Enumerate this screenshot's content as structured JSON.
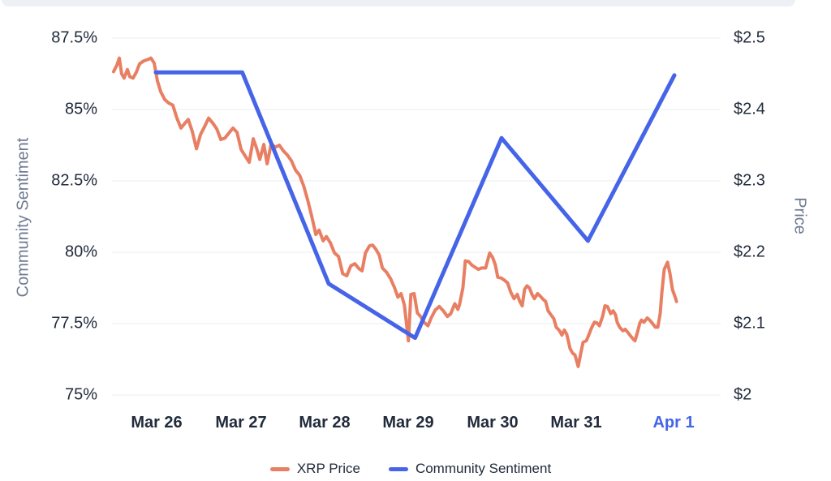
{
  "colors": {
    "price_line": "#E87F63",
    "sentiment_line": "#4564E8",
    "grid": "#E9ECEF",
    "text_dark": "#212B3B",
    "text_muted": "#6E7B90",
    "accent_label": "#4564E8",
    "top_strip": "#EDF0F4"
  },
  "chart_data": {
    "type": "line",
    "title": "",
    "x_unit": "days (0 = Mar 26)",
    "x_axis": {
      "tick_labels": [
        "Mar 26",
        "Mar 27",
        "Mar 28",
        "Mar 29",
        "Mar 30",
        "Mar 31",
        "Apr 1"
      ],
      "highlight_last": true
    },
    "left_axis": {
      "label": "Community Sentiment",
      "unit": "%",
      "min": 75,
      "max": 87.5,
      "tick_labels": [
        "87.5%",
        "85%",
        "82.5%",
        "80%",
        "77.5%",
        "75%"
      ]
    },
    "right_axis": {
      "label": "Price",
      "unit": "$",
      "min": 2.0,
      "max": 2.5,
      "tick_labels": [
        "$2.5",
        "$2.4",
        "$2.3",
        "$2.2",
        "$2.1",
        "$2"
      ]
    },
    "grid": true,
    "legend_position": "bottom",
    "series": [
      {
        "name": "XRP Price",
        "axis": "right",
        "color": "#E87F63",
        "points": [
          [
            -0.489,
            2.453
          ],
          [
            -0.451,
            2.462
          ],
          [
            -0.423,
            2.472
          ],
          [
            -0.395,
            2.45
          ],
          [
            -0.367,
            2.444
          ],
          [
            -0.329,
            2.456
          ],
          [
            -0.301,
            2.446
          ],
          [
            -0.263,
            2.444
          ],
          [
            -0.226,
            2.452
          ],
          [
            -0.188,
            2.464
          ],
          [
            -0.141,
            2.468
          ],
          [
            -0.094,
            2.47
          ],
          [
            -0.056,
            2.472
          ],
          [
            -0.019,
            2.465
          ],
          [
            0.019,
            2.44
          ],
          [
            0.056,
            2.425
          ],
          [
            0.103,
            2.414
          ],
          [
            0.15,
            2.409
          ],
          [
            0.197,
            2.406
          ],
          [
            0.244,
            2.388
          ],
          [
            0.291,
            2.374
          ],
          [
            0.338,
            2.381
          ],
          [
            0.376,
            2.386
          ],
          [
            0.423,
            2.369
          ],
          [
            0.47,
            2.345
          ],
          [
            0.517,
            2.365
          ],
          [
            0.564,
            2.376
          ],
          [
            0.611,
            2.388
          ],
          [
            0.658,
            2.381
          ],
          [
            0.705,
            2.373
          ],
          [
            0.752,
            2.358
          ],
          [
            0.799,
            2.36
          ],
          [
            0.846,
            2.367
          ],
          [
            0.893,
            2.374
          ],
          [
            0.94,
            2.368
          ],
          [
            0.987,
            2.344
          ],
          [
            1.034,
            2.335
          ],
          [
            1.081,
            2.326
          ],
          [
            1.128,
            2.359
          ],
          [
            1.165,
            2.346
          ],
          [
            1.203,
            2.33
          ],
          [
            1.25,
            2.351
          ],
          [
            1.288,
            2.324
          ],
          [
            1.335,
            2.352
          ],
          [
            1.382,
            2.347
          ],
          [
            1.429,
            2.35
          ],
          [
            1.476,
            2.342
          ],
          [
            1.523,
            2.336
          ],
          [
            1.57,
            2.328
          ],
          [
            1.617,
            2.315
          ],
          [
            1.664,
            2.308
          ],
          [
            1.711,
            2.293
          ],
          [
            1.758,
            2.273
          ],
          [
            1.805,
            2.25
          ],
          [
            1.852,
            2.225
          ],
          [
            1.889,
            2.231
          ],
          [
            1.936,
            2.216
          ],
          [
            1.974,
            2.222
          ],
          [
            2.021,
            2.213
          ],
          [
            2.068,
            2.199
          ],
          [
            2.115,
            2.194
          ],
          [
            2.162,
            2.17
          ],
          [
            2.209,
            2.167
          ],
          [
            2.256,
            2.181
          ],
          [
            2.303,
            2.184
          ],
          [
            2.35,
            2.177
          ],
          [
            2.387,
            2.174
          ],
          [
            2.425,
            2.199
          ],
          [
            2.472,
            2.209
          ],
          [
            2.509,
            2.21
          ],
          [
            2.547,
            2.204
          ],
          [
            2.585,
            2.196
          ],
          [
            2.622,
            2.178
          ],
          [
            2.669,
            2.172
          ],
          [
            2.716,
            2.163
          ],
          [
            2.763,
            2.15
          ],
          [
            2.801,
            2.137
          ],
          [
            2.838,
            2.142
          ],
          [
            2.876,
            2.126
          ],
          [
            2.923,
            2.076
          ],
          [
            2.951,
            2.141
          ],
          [
            2.989,
            2.142
          ],
          [
            3.026,
            2.115
          ],
          [
            3.064,
            2.11
          ],
          [
            3.102,
            2.102
          ],
          [
            3.149,
            2.097
          ],
          [
            3.186,
            2.108
          ],
          [
            3.233,
            2.119
          ],
          [
            3.28,
            2.124
          ],
          [
            3.327,
            2.118
          ],
          [
            3.374,
            2.11
          ],
          [
            3.412,
            2.114
          ],
          [
            3.459,
            2.128
          ],
          [
            3.496,
            2.12
          ],
          [
            3.515,
            2.127
          ],
          [
            3.553,
            2.15
          ],
          [
            3.581,
            2.188
          ],
          [
            3.618,
            2.187
          ],
          [
            3.656,
            2.182
          ],
          [
            3.694,
            2.179
          ],
          [
            3.731,
            2.176
          ],
          [
            3.769,
            2.178
          ],
          [
            3.816,
            2.178
          ],
          [
            3.863,
            2.199
          ],
          [
            3.9,
            2.192
          ],
          [
            3.929,
            2.182
          ],
          [
            3.957,
            2.165
          ],
          [
            3.994,
            2.164
          ],
          [
            4.032,
            2.161
          ],
          [
            4.07,
            2.157
          ],
          [
            4.107,
            2.144
          ],
          [
            4.145,
            2.135
          ],
          [
            4.182,
            2.141
          ],
          [
            4.211,
            2.131
          ],
          [
            4.239,
            2.125
          ],
          [
            4.267,
            2.148
          ],
          [
            4.295,
            2.153
          ],
          [
            4.323,
            2.15
          ],
          [
            4.352,
            2.141
          ],
          [
            4.38,
            2.135
          ],
          [
            4.417,
            2.142
          ],
          [
            4.445,
            2.139
          ],
          [
            4.474,
            2.135
          ],
          [
            4.511,
            2.131
          ],
          [
            4.539,
            2.118
          ],
          [
            4.568,
            2.113
          ],
          [
            4.605,
            2.107
          ],
          [
            4.633,
            2.095
          ],
          [
            4.671,
            2.09
          ],
          [
            4.699,
            2.084
          ],
          [
            4.727,
            2.091
          ],
          [
            4.755,
            2.085
          ],
          [
            4.793,
            2.065
          ],
          [
            4.821,
            2.059
          ],
          [
            4.85,
            2.056
          ],
          [
            4.887,
            2.04
          ],
          [
            4.915,
            2.057
          ],
          [
            4.944,
            2.074
          ],
          [
            4.981,
            2.076
          ],
          [
            5.009,
            2.084
          ],
          [
            5.038,
            2.093
          ],
          [
            5.075,
            2.102
          ],
          [
            5.103,
            2.101
          ],
          [
            5.132,
            2.097
          ],
          [
            5.169,
            2.11
          ],
          [
            5.197,
            2.125
          ],
          [
            5.226,
            2.124
          ],
          [
            5.263,
            2.114
          ],
          [
            5.291,
            2.118
          ],
          [
            5.32,
            2.112
          ],
          [
            5.338,
            2.102
          ],
          [
            5.366,
            2.095
          ],
          [
            5.404,
            2.09
          ],
          [
            5.432,
            2.092
          ],
          [
            5.46,
            2.088
          ],
          [
            5.498,
            2.082
          ],
          [
            5.526,
            2.078
          ],
          [
            5.545,
            2.076
          ],
          [
            5.573,
            2.088
          ],
          [
            5.601,
            2.101
          ],
          [
            5.62,
            2.105
          ],
          [
            5.648,
            2.102
          ],
          [
            5.686,
            2.108
          ],
          [
            5.714,
            2.105
          ],
          [
            5.742,
            2.101
          ],
          [
            5.78,
            2.095
          ],
          [
            5.808,
            2.095
          ],
          [
            5.836,
            2.114
          ],
          [
            5.855,
            2.144
          ],
          [
            5.883,
            2.176
          ],
          [
            5.921,
            2.186
          ],
          [
            5.949,
            2.17
          ],
          [
            5.977,
            2.148
          ],
          [
            6.015,
            2.135
          ],
          [
            6.024,
            2.131
          ]
        ]
      },
      {
        "name": "Community Sentiment",
        "axis": "left",
        "color": "#4564E8",
        "points": [
          [
            0,
            86.3
          ],
          [
            1,
            86.3
          ],
          [
            2,
            78.9
          ],
          [
            3,
            77.0
          ],
          [
            4,
            84.0
          ],
          [
            5,
            80.4
          ],
          [
            6,
            86.2
          ]
        ]
      }
    ]
  },
  "legend": {
    "items": [
      {
        "label": "XRP Price",
        "color": "#E87F63"
      },
      {
        "label": "Community Sentiment",
        "color": "#4564E8"
      }
    ]
  }
}
